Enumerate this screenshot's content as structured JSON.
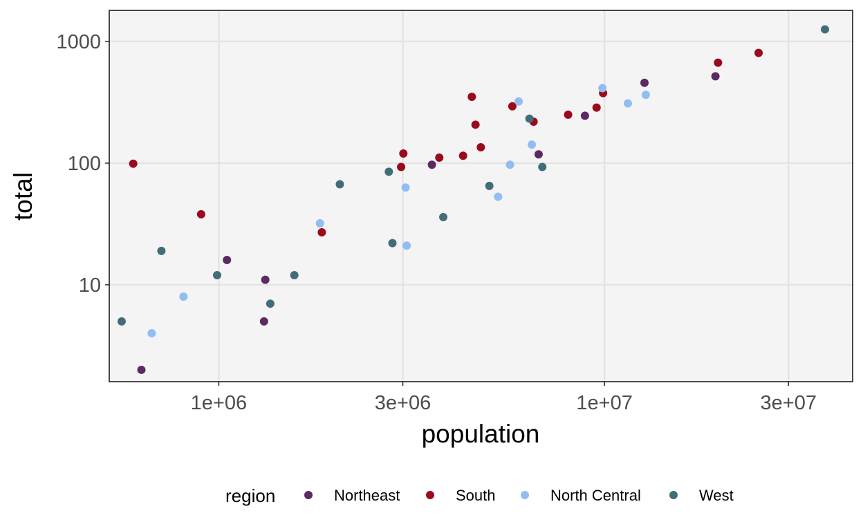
{
  "chart_data": {
    "type": "scatter",
    "title": "",
    "xlabel": "population",
    "ylabel": "total",
    "x_scale": "log10",
    "y_scale": "log10",
    "xlim": [
      520000,
      44000000
    ],
    "ylim": [
      1.6,
      1800
    ],
    "x_ticks": [
      {
        "value": 1000000,
        "label": "1e+06"
      },
      {
        "value": 3000000,
        "label": "3e+06"
      },
      {
        "value": 10000000,
        "label": "1e+07"
      },
      {
        "value": 30000000,
        "label": "3e+07"
      }
    ],
    "y_ticks": [
      {
        "value": 10,
        "label": "10"
      },
      {
        "value": 100,
        "label": "100"
      },
      {
        "value": 1000,
        "label": "1000"
      }
    ],
    "grid": true,
    "background_color": "#f4f4f4",
    "legend": {
      "title": "region",
      "position": "bottom",
      "entries": [
        {
          "name": "Northeast",
          "color": "#5b2a63"
        },
        {
          "name": "South",
          "color": "#9b0a1c"
        },
        {
          "name": "North Central",
          "color": "#92bdf2"
        },
        {
          "name": "West",
          "color": "#426d78"
        }
      ]
    },
    "series": [
      {
        "name": "Northeast",
        "color": "#5b2a63",
        "points": [
          {
            "x": 630000,
            "y": 2
          },
          {
            "x": 1050000,
            "y": 16
          },
          {
            "x": 1320000,
            "y": 11
          },
          {
            "x": 1310000,
            "y": 5
          },
          {
            "x": 3570000,
            "y": 97
          },
          {
            "x": 6750000,
            "y": 118
          },
          {
            "x": 8900000,
            "y": 245
          },
          {
            "x": 12700000,
            "y": 457
          },
          {
            "x": 19400000,
            "y": 517
          }
        ]
      },
      {
        "name": "South",
        "color": "#9b0a1c",
        "points": [
          {
            "x": 600000,
            "y": 99
          },
          {
            "x": 900000,
            "y": 38
          },
          {
            "x": 1850000,
            "y": 27
          },
          {
            "x": 2970000,
            "y": 93
          },
          {
            "x": 3010000,
            "y": 120
          },
          {
            "x": 3730000,
            "y": 111
          },
          {
            "x": 4300000,
            "y": 115
          },
          {
            "x": 4530000,
            "y": 351
          },
          {
            "x": 4630000,
            "y": 207
          },
          {
            "x": 4780000,
            "y": 135
          },
          {
            "x": 5770000,
            "y": 293
          },
          {
            "x": 6550000,
            "y": 219
          },
          {
            "x": 8050000,
            "y": 250
          },
          {
            "x": 9540000,
            "y": 286
          },
          {
            "x": 9920000,
            "y": 376
          },
          {
            "x": 19700000,
            "y": 669
          },
          {
            "x": 25100000,
            "y": 805
          }
        ]
      },
      {
        "name": "North Central",
        "color": "#92bdf2",
        "points": [
          {
            "x": 670000,
            "y": 4
          },
          {
            "x": 810000,
            "y": 8
          },
          {
            "x": 1830000,
            "y": 32
          },
          {
            "x": 3050000,
            "y": 63
          },
          {
            "x": 3070000,
            "y": 21
          },
          {
            "x": 5300000,
            "y": 53
          },
          {
            "x": 5690000,
            "y": 97
          },
          {
            "x": 5990000,
            "y": 321
          },
          {
            "x": 6480000,
            "y": 142
          },
          {
            "x": 9880000,
            "y": 413
          },
          {
            "x": 11500000,
            "y": 310
          },
          {
            "x": 12800000,
            "y": 364
          }
        ]
      },
      {
        "name": "West",
        "color": "#426d78",
        "points": [
          {
            "x": 560000,
            "y": 5
          },
          {
            "x": 710000,
            "y": 19
          },
          {
            "x": 990000,
            "y": 12
          },
          {
            "x": 1360000,
            "y": 7
          },
          {
            "x": 1570000,
            "y": 12
          },
          {
            "x": 2060000,
            "y": 67
          },
          {
            "x": 2760000,
            "y": 85
          },
          {
            "x": 2820000,
            "y": 22
          },
          {
            "x": 3820000,
            "y": 36
          },
          {
            "x": 5030000,
            "y": 65
          },
          {
            "x": 6390000,
            "y": 232
          },
          {
            "x": 6900000,
            "y": 93
          },
          {
            "x": 37300000,
            "y": 1257
          }
        ]
      }
    ]
  }
}
